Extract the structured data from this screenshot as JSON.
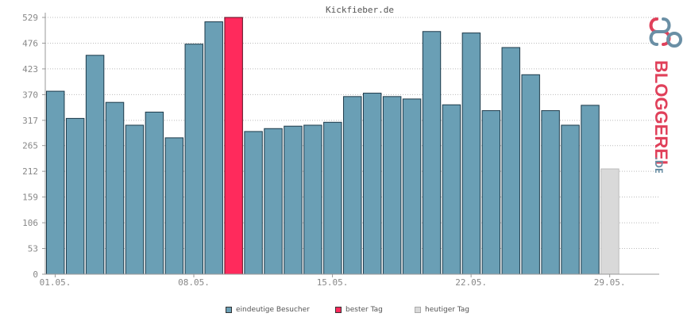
{
  "chart_data": {
    "type": "bar",
    "title": "Kickfieber.de",
    "yticks": [
      "0",
      "53",
      "106",
      "159",
      "212",
      "265",
      "317",
      "370",
      "423",
      "476",
      "529"
    ],
    "ylim": [
      0,
      529
    ],
    "xtick_labels": [
      {
        "index": 0,
        "label": "01.05."
      },
      {
        "index": 7,
        "label": "08.05."
      },
      {
        "index": 14,
        "label": "15.05."
      },
      {
        "index": 21,
        "label": "22.05."
      },
      {
        "index": 28,
        "label": "29.05."
      }
    ],
    "grid": true,
    "legend_position": "bottom",
    "colors": {
      "visitors": "#6a9fb5",
      "best": "#ff2a5c",
      "today": "#d9d9d9"
    },
    "series": [
      {
        "name": "eindeutige Besucher",
        "values": [
          377,
          321,
          451,
          354,
          307,
          334,
          281,
          474,
          520,
          529,
          294,
          300,
          305,
          307,
          313,
          366,
          373,
          366,
          361,
          500,
          349,
          497,
          337,
          467,
          411,
          337,
          307,
          348,
          217,
          null,
          null
        ],
        "best_index": 9,
        "today_index": 28
      }
    ],
    "legend": [
      {
        "label": "eindeutige Besucher",
        "color": "#6a9fb5"
      },
      {
        "label": "bester Tag",
        "color": "#ff2a5c"
      },
      {
        "label": "heutiger Tag",
        "color": "#d9d9d9"
      }
    ]
  },
  "logo": {
    "text": "BLOGGEREI",
    "suffix": ".DE"
  }
}
